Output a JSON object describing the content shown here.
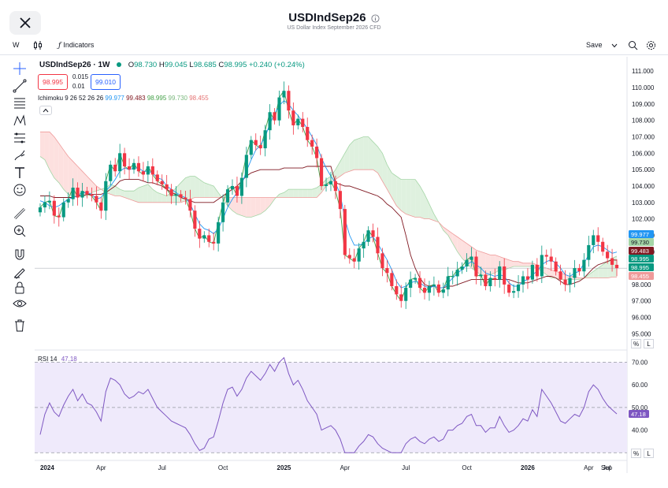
{
  "header": {
    "symbol": "USDIndSep26",
    "description": "US Dollar Index September 2026 CFD",
    "close_icon": "close-icon",
    "info_icon": "info-icon"
  },
  "toolbar": {
    "interval": "W",
    "chart_type_icon": "candles-icon",
    "indicators_icon": "fx-icon",
    "indicators_label": "Indicators",
    "save_label": "Save",
    "save_menu_icon": "chevron-down-icon",
    "search_icon": "zoom-icon",
    "settings_icon": "gear-icon"
  },
  "legend": {
    "symbol_interval": "USDIndSep26 · 1W",
    "open_label": "O",
    "open": "98.730",
    "high_label": "H",
    "high": "99.045",
    "low_label": "L",
    "low": "98.685",
    "close_label": "C",
    "close": "98.995",
    "change": "+0.240 (+0.24%)",
    "sell_price": "98.995",
    "buy_price": "99.010",
    "spread_top": "0.015",
    "spread_bottom": "0.01",
    "ichimoku_label": "Ichimoku 9 26 52 26 26",
    "ichimoku_conversion": "99.977",
    "ichimoku_base": "99.483",
    "ichimoku_lagging": "98.995",
    "ichimoku_span_a": "99.730",
    "ichimoku_span_b": "98.455",
    "collapse_icon": "chevron-up-icon",
    "rsi_label": "RSI 14",
    "rsi_value": "47.18"
  },
  "drawing_tools": [
    "crosshair-icon",
    "trend-line-icon",
    "fib-icon",
    "pattern-icon",
    "measure-icon",
    "brush-icon",
    "text-icon",
    "emoji-icon",
    "ruler-icon",
    "zoom-in-icon",
    "magnet-icon",
    "lock-drawing-icon",
    "lock-icon",
    "eye-icon",
    "trash-icon"
  ],
  "axis_modes": {
    "pct": "%",
    "log": "L"
  },
  "price_chips": [
    "99.977",
    "99.730",
    "99.483",
    "98.995",
    "98.995",
    "98.455"
  ],
  "colors": {
    "up": "#089981",
    "down": "#f23645",
    "conversion": "#2196f3",
    "base": "#801922",
    "lagging": "#43a047",
    "span_a": "#a5d6a7",
    "span_b": "#ef9a9a",
    "cloud_bear": "#fde0df",
    "cloud_bull": "#dff1df",
    "rsi_line": "#7e57c2",
    "rsi_band": "#efeafb"
  },
  "chart_data": [
    {
      "type": "candlestick",
      "title": "USDIndSep26 · 1W",
      "y_ticks": [
        95.0,
        96.0,
        97.0,
        98.0,
        99.0,
        100.0,
        101.0,
        102.0,
        103.0,
        104.0,
        105.0,
        106.0,
        107.0,
        108.0,
        109.0,
        110.0,
        111.0
      ],
      "y_tick_labels": [
        "95.000",
        "96.000",
        "97.000",
        "98.000",
        "99.000",
        "100.000",
        "101.000",
        "102.000",
        "103.000",
        "104.000",
        "105.000",
        "106.000",
        "107.000",
        "108.000",
        "109.000",
        "110.000",
        "111.000"
      ],
      "ylim": [
        94.2,
        111.3
      ],
      "x_labels": [
        "2024",
        "Apr",
        "Jul",
        "Oct",
        "2025",
        "Apr",
        "Jul",
        "Oct",
        "2026",
        "Apr",
        "Jul",
        "Sep"
      ],
      "close_series": [
        102.7,
        103.0,
        103.1,
        102.2,
        102.1,
        103.0,
        103.2,
        103.9,
        103.3,
        103.7,
        103.5,
        103.4,
        103.0,
        102.5,
        104.3,
        105.3,
        104.9,
        106.0,
        105.2,
        105.0,
        105.4,
        104.9,
        104.7,
        105.2,
        104.7,
        104.3,
        104.1,
        103.8,
        103.4,
        103.5,
        103.3,
        103.2,
        102.5,
        101.4,
        100.8,
        101.0,
        100.6,
        100.5,
        101.8,
        103.0,
        103.8,
        104.0,
        103.4,
        104.5,
        105.9,
        106.8,
        106.5,
        106.3,
        107.4,
        108.5,
        108.0,
        109.4,
        109.8,
        108.6,
        107.7,
        108.1,
        107.6,
        106.8,
        106.4,
        105.7,
        104.0,
        104.1,
        104.3,
        103.7,
        102.6,
        99.8,
        99.6,
        99.4,
        100.2,
        100.6,
        101.3,
        100.9,
        99.9,
        99.0,
        98.7,
        97.9,
        97.4,
        97.0,
        97.8,
        98.3,
        98.4,
        97.8,
        97.5,
        97.9,
        98.0,
        97.5,
        97.7,
        98.5,
        98.5,
        98.9,
        99.1,
        99.5,
        99.7,
        98.5,
        98.6,
        97.9,
        98.4,
        98.3,
        99.1,
        98.0,
        97.5,
        97.6,
        98.0,
        98.5,
        98.3,
        99.2,
        98.5,
        99.8,
        99.7,
        99.4,
        98.8,
        98.3,
        98.0,
        98.4,
        99.0,
        98.8,
        99.5,
        100.4,
        101.0,
        100.6,
        100.0,
        99.6,
        99.2,
        98.995
      ],
      "conversion_line": [
        103.1,
        103.0,
        102.8,
        102.7,
        102.8,
        103.0,
        103.2,
        103.3,
        103.4,
        103.6,
        103.6,
        103.5,
        103.2,
        103.3,
        103.7,
        104.0,
        104.4,
        104.9,
        105.1,
        105.0,
        105.1,
        105.1,
        104.9,
        104.9,
        104.8,
        104.5,
        104.4,
        104.0,
        103.8,
        103.6,
        103.4,
        103.3,
        102.9,
        102.3,
        101.7,
        101.4,
        101.3,
        101.1,
        101.4,
        102.0,
        102.7,
        103.2,
        103.6,
        104.1,
        104.9,
        105.6,
        106.2,
        106.5,
        107.0,
        107.8,
        108.4,
        108.9,
        109.2,
        109.0,
        108.6,
        108.3,
        107.9,
        107.5,
        107.0,
        106.5,
        105.7,
        105.1,
        104.6,
        104.2,
        103.5,
        102.0,
        101.0,
        100.4,
        100.4,
        100.5,
        100.8,
        100.9,
        100.5,
        100.0,
        99.5,
        98.9,
        98.2,
        97.8,
        97.9,
        98.1,
        98.2,
        98.1,
        97.9,
        97.8,
        97.9,
        97.8,
        97.8,
        98.1,
        98.4,
        98.7,
        98.9,
        99.2,
        99.4,
        99.2,
        99.0,
        98.7,
        98.6,
        98.5,
        98.6,
        98.5,
        98.1,
        97.9,
        97.9,
        98.2,
        98.3,
        98.6,
        98.8,
        99.2,
        99.4,
        99.5,
        99.3,
        99.0,
        98.6,
        98.5,
        98.7,
        98.8,
        99.3,
        99.8,
        100.3,
        100.4,
        100.3,
        100.1,
        99.9,
        99.977
      ],
      "base_line": [
        103.4,
        103.4,
        103.4,
        103.3,
        103.3,
        103.3,
        103.3,
        103.3,
        103.4,
        103.4,
        103.5,
        103.5,
        103.5,
        103.5,
        103.6,
        103.8,
        104.0,
        104.3,
        104.4,
        104.4,
        104.4,
        104.4,
        104.3,
        104.2,
        104.2,
        104.1,
        104.0,
        103.8,
        103.6,
        103.5,
        103.3,
        103.2,
        103.1,
        103.0,
        103.0,
        103.0,
        103.0,
        103.0,
        103.2,
        103.4,
        103.6,
        103.8,
        104.0,
        104.3,
        104.6,
        104.8,
        104.9,
        105.0,
        105.0,
        105.0,
        105.0,
        105.0,
        105.1,
        105.1,
        105.1,
        105.1,
        105.1,
        105.2,
        105.2,
        105.2,
        105.2,
        105.2,
        105.2,
        104.2,
        104.1,
        104.0,
        104.0,
        103.9,
        103.8,
        103.7,
        103.6,
        103.5,
        103.4,
        103.2,
        102.9,
        102.7,
        102.4,
        102.1,
        101.0,
        99.8,
        99.0,
        98.4,
        98.0,
        97.9,
        97.9,
        97.8,
        97.8,
        97.9,
        97.9,
        98.0,
        98.1,
        98.2,
        98.3,
        98.3,
        98.3,
        98.3,
        98.3,
        98.3,
        98.3,
        98.3,
        98.3,
        98.2,
        98.1,
        98.1,
        98.1,
        98.2,
        98.3,
        98.4,
        98.5,
        98.5,
        98.4,
        98.2,
        98.0,
        98.0,
        98.1,
        98.2,
        98.4,
        98.7,
        99.0,
        99.2,
        99.3,
        99.4,
        99.5,
        99.483
      ],
      "lagging_span": [
        102.7,
        103.0,
        103.1,
        102.2,
        102.1,
        103.0,
        103.2,
        103.9,
        103.3,
        103.7,
        103.5,
        103.4,
        103.0,
        102.5,
        104.3,
        105.3,
        104.9,
        106.0,
        105.2,
        105.0,
        105.4,
        104.9,
        104.7,
        105.2,
        104.7,
        104.3,
        104.1,
        103.8,
        103.4,
        103.5,
        103.3,
        103.2,
        102.5,
        101.4,
        100.8,
        101.0,
        100.6,
        100.5,
        101.8,
        103.0,
        103.8,
        104.0,
        103.4,
        104.5,
        105.9,
        106.8,
        106.5,
        106.3,
        107.4,
        108.5,
        108.0,
        109.4,
        109.8,
        108.6,
        107.7,
        108.1,
        107.6,
        106.8,
        106.4,
        105.7,
        104.0,
        104.1,
        104.3,
        103.7,
        102.6,
        99.8,
        99.6,
        99.4,
        100.2,
        100.6,
        101.3,
        100.9,
        99.9,
        99.0,
        98.7,
        97.9,
        97.4,
        97.0,
        97.8,
        98.3,
        98.4,
        97.8,
        97.5,
        97.9,
        98.0,
        97.5,
        97.7,
        98.5,
        98.5,
        98.9,
        99.1,
        99.5,
        99.7,
        98.5,
        98.6,
        97.9,
        98.4,
        98.3
      ],
      "span_a": [
        105.8,
        105.6,
        105.0,
        104.5,
        104.2,
        103.8,
        103.5,
        103.4,
        103.4,
        103.4,
        103.4,
        103.6,
        103.7,
        103.8,
        103.9,
        104.1,
        104.0,
        103.8,
        103.7,
        103.7,
        103.7,
        103.9,
        104.0,
        104.1,
        103.8,
        103.6,
        103.5,
        103.4,
        103.6,
        103.9,
        104.2,
        104.5,
        104.6,
        104.6,
        104.4,
        104.2,
        104.1,
        104.0,
        103.6,
        103.2,
        102.8,
        102.5,
        102.3,
        102.2,
        102.1,
        102.1,
        102.2,
        102.3,
        102.5,
        102.8,
        103.2,
        103.5,
        103.6,
        103.8,
        103.8,
        103.8,
        103.8,
        103.8,
        103.8,
        103.9,
        104.1,
        104.4,
        104.6,
        105.0,
        105.5,
        106.0,
        106.5,
        106.8,
        106.9,
        107.0,
        107.0,
        106.7,
        106.4,
        106.0,
        105.3,
        104.8,
        104.6,
        104.4,
        104.4,
        104.4,
        104.4,
        104.0,
        103.5,
        102.9,
        102.3,
        101.8,
        101.3,
        101.0,
        100.5,
        100.0,
        99.6,
        99.3,
        99.0,
        98.8,
        98.6,
        98.5,
        98.6,
        98.7,
        98.9,
        98.9,
        99.0,
        99.1,
        99.1,
        99.1,
        99.1,
        99.1,
        99.0,
        98.8,
        98.6,
        98.4,
        98.4,
        98.3,
        98.3,
        98.3,
        98.3,
        98.3,
        98.4,
        98.6,
        98.8,
        99.0,
        99.2,
        99.4,
        99.6,
        99.73
      ],
      "span_b": [
        107.3,
        107.3,
        107.3,
        107.0,
        106.6,
        106.2,
        105.8,
        105.5,
        105.2,
        104.9,
        104.6,
        104.3,
        104.0,
        103.8,
        103.6,
        103.5,
        103.4,
        103.4,
        103.3,
        103.2,
        103.1,
        103.0,
        103.0,
        103.0,
        103.0,
        103.0,
        103.0,
        103.0,
        103.0,
        103.0,
        103.0,
        103.1,
        103.2,
        103.3,
        103.3,
        103.3,
        103.3,
        103.3,
        103.3,
        103.3,
        103.3,
        103.3,
        103.3,
        103.3,
        103.3,
        103.3,
        103.3,
        103.3,
        103.3,
        103.3,
        103.3,
        103.3,
        103.3,
        103.3,
        103.3,
        103.3,
        103.3,
        103.3,
        103.3,
        103.3,
        103.6,
        104.0,
        104.2,
        104.4,
        104.6,
        104.8,
        104.9,
        105.0,
        105.0,
        105.0,
        105.0,
        105.0,
        104.8,
        104.3,
        103.8,
        103.3,
        102.8,
        102.5,
        102.3,
        102.2,
        102.1,
        102.1,
        102.0,
        102.0,
        101.9,
        101.8,
        101.5,
        101.3,
        101.1,
        100.9,
        100.7,
        100.5,
        100.3,
        100.1,
        100.0,
        99.9,
        99.8,
        99.8,
        99.7,
        99.6,
        99.5,
        99.4,
        99.4,
        99.3,
        99.3,
        99.3,
        99.2,
        99.1,
        99.0,
        98.9,
        98.8,
        98.7,
        98.6,
        98.5,
        98.5,
        98.4,
        98.4,
        98.4,
        98.4,
        98.4,
        98.4,
        98.4,
        98.45,
        98.455
      ]
    },
    {
      "type": "line",
      "title": "RSI 14",
      "y_ticks": [
        40.0,
        50.0,
        60.0,
        70.0
      ],
      "y_tick_labels": [
        "40.00",
        "50.00",
        "60.00",
        "70.00"
      ],
      "ylim": [
        28,
        74
      ],
      "bands": [
        30,
        50,
        70
      ],
      "series": [
        {
          "name": "RSI 14",
          "values": [
            38,
            47,
            52,
            48,
            46,
            51,
            55,
            58,
            53,
            56,
            52,
            51,
            48,
            44,
            57,
            63,
            62,
            60,
            56,
            54,
            55,
            57,
            56,
            58,
            54,
            50,
            48,
            46,
            44,
            43,
            42,
            41,
            38,
            34,
            31,
            32,
            36,
            37,
            44,
            52,
            58,
            59,
            55,
            58,
            63,
            66,
            64,
            62,
            65,
            69,
            66,
            70,
            72,
            65,
            60,
            62,
            58,
            53,
            50,
            47,
            40,
            41,
            42,
            40,
            36,
            30,
            30,
            30,
            33,
            35,
            38,
            37,
            34,
            32,
            31,
            30,
            30,
            30,
            34,
            36,
            37,
            35,
            34,
            36,
            37,
            35,
            36,
            40,
            40,
            42,
            43,
            46,
            47,
            42,
            42,
            39,
            41,
            41,
            46,
            42,
            39,
            40,
            42,
            45,
            44,
            49,
            46,
            58,
            55,
            52,
            48,
            44,
            43,
            45,
            47,
            46,
            50,
            57,
            60,
            58,
            54,
            51,
            49,
            47.18
          ]
        }
      ]
    }
  ]
}
